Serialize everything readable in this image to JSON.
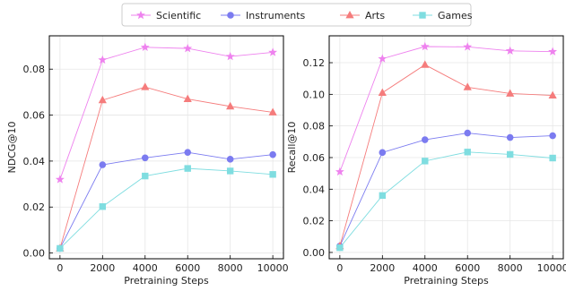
{
  "chart_data": [
    {
      "type": "line",
      "xlabel": "Pretraining Steps",
      "ylabel": "NDCG@10",
      "x": [
        0,
        2000,
        4000,
        6000,
        8000,
        10000
      ],
      "xlim": [
        -500,
        10500
      ],
      "ylim": [
        -0.0025,
        0.0945
      ],
      "xticks": [
        0,
        2000,
        4000,
        6000,
        8000,
        10000
      ],
      "xtick_labels": [
        "0",
        "2000",
        "4000",
        "6000",
        "8000",
        "10000"
      ],
      "yticks": [
        0.0,
        0.02,
        0.04,
        0.06,
        0.08
      ],
      "ytick_labels": [
        "0.00",
        "0.02",
        "0.04",
        "0.06",
        "0.08"
      ],
      "grid": true,
      "series": [
        {
          "name": "Scientific",
          "values": [
            0.032,
            0.084,
            0.0895,
            0.089,
            0.0855,
            0.0873
          ]
        },
        {
          "name": "Instruments",
          "values": [
            0.002,
            0.0384,
            0.0414,
            0.0438,
            0.0408,
            0.0428
          ]
        },
        {
          "name": "Arts",
          "values": [
            0.002,
            0.0665,
            0.0722,
            0.067,
            0.0638,
            0.0612
          ]
        },
        {
          "name": "Games",
          "values": [
            0.002,
            0.0202,
            0.0335,
            0.0368,
            0.0357,
            0.0342
          ]
        }
      ]
    },
    {
      "type": "line",
      "xlabel": "Pretraining Steps",
      "ylabel": "Recall@10",
      "x": [
        0,
        2000,
        4000,
        6000,
        8000,
        10000
      ],
      "xlim": [
        -500,
        10500
      ],
      "ylim": [
        -0.004,
        0.137
      ],
      "xticks": [
        0,
        2000,
        4000,
        6000,
        8000,
        10000
      ],
      "xtick_labels": [
        "0",
        "2000",
        "4000",
        "6000",
        "8000",
        "10000"
      ],
      "yticks": [
        0.0,
        0.02,
        0.04,
        0.06,
        0.08,
        0.1,
        0.12
      ],
      "ytick_labels": [
        "0.00",
        "0.02",
        "0.04",
        "0.06",
        "0.08",
        "0.10",
        "0.12"
      ],
      "grid": true,
      "series": [
        {
          "name": "Scientific",
          "values": [
            0.051,
            0.1225,
            0.1302,
            0.13,
            0.1275,
            0.127
          ]
        },
        {
          "name": "Instruments",
          "values": [
            0.004,
            0.0632,
            0.0713,
            0.0755,
            0.0727,
            0.0738
          ]
        },
        {
          "name": "Arts",
          "values": [
            0.004,
            0.101,
            0.1187,
            0.1045,
            0.1005,
            0.0993
          ]
        },
        {
          "name": "Games",
          "values": [
            0.003,
            0.036,
            0.0578,
            0.0635,
            0.062,
            0.0597
          ]
        }
      ]
    }
  ],
  "legend": {
    "position": "top-center",
    "items": [
      {
        "name": "Scientific",
        "color": "#ee82ee",
        "marker": "star"
      },
      {
        "name": "Instruments",
        "color": "#7b7bf0",
        "marker": "circle"
      },
      {
        "name": "Arts",
        "color": "#f57c7c",
        "marker": "triangle"
      },
      {
        "name": "Games",
        "color": "#7fdde0",
        "marker": "square"
      }
    ]
  }
}
